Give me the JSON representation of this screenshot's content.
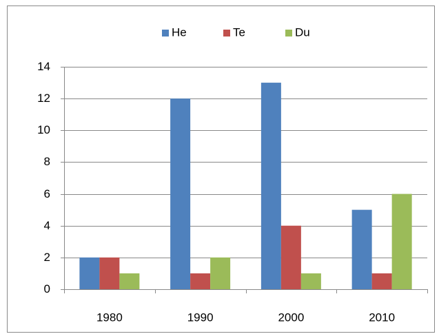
{
  "chart_data": {
    "type": "bar",
    "categories": [
      "1980",
      "1990",
      "2000",
      "2010"
    ],
    "series": [
      {
        "name": "He",
        "color": "#4f81bd",
        "values": [
          2,
          12,
          13,
          5
        ]
      },
      {
        "name": "Te",
        "color": "#c0504d",
        "values": [
          2,
          1,
          4,
          1
        ]
      },
      {
        "name": "Du",
        "color": "#9bbb59",
        "values": [
          1,
          2,
          1,
          6
        ]
      }
    ],
    "ylim": [
      0,
      14
    ],
    "yticks": [
      0,
      2,
      4,
      6,
      8,
      10,
      12,
      14
    ],
    "grid": true,
    "legend": "top"
  }
}
